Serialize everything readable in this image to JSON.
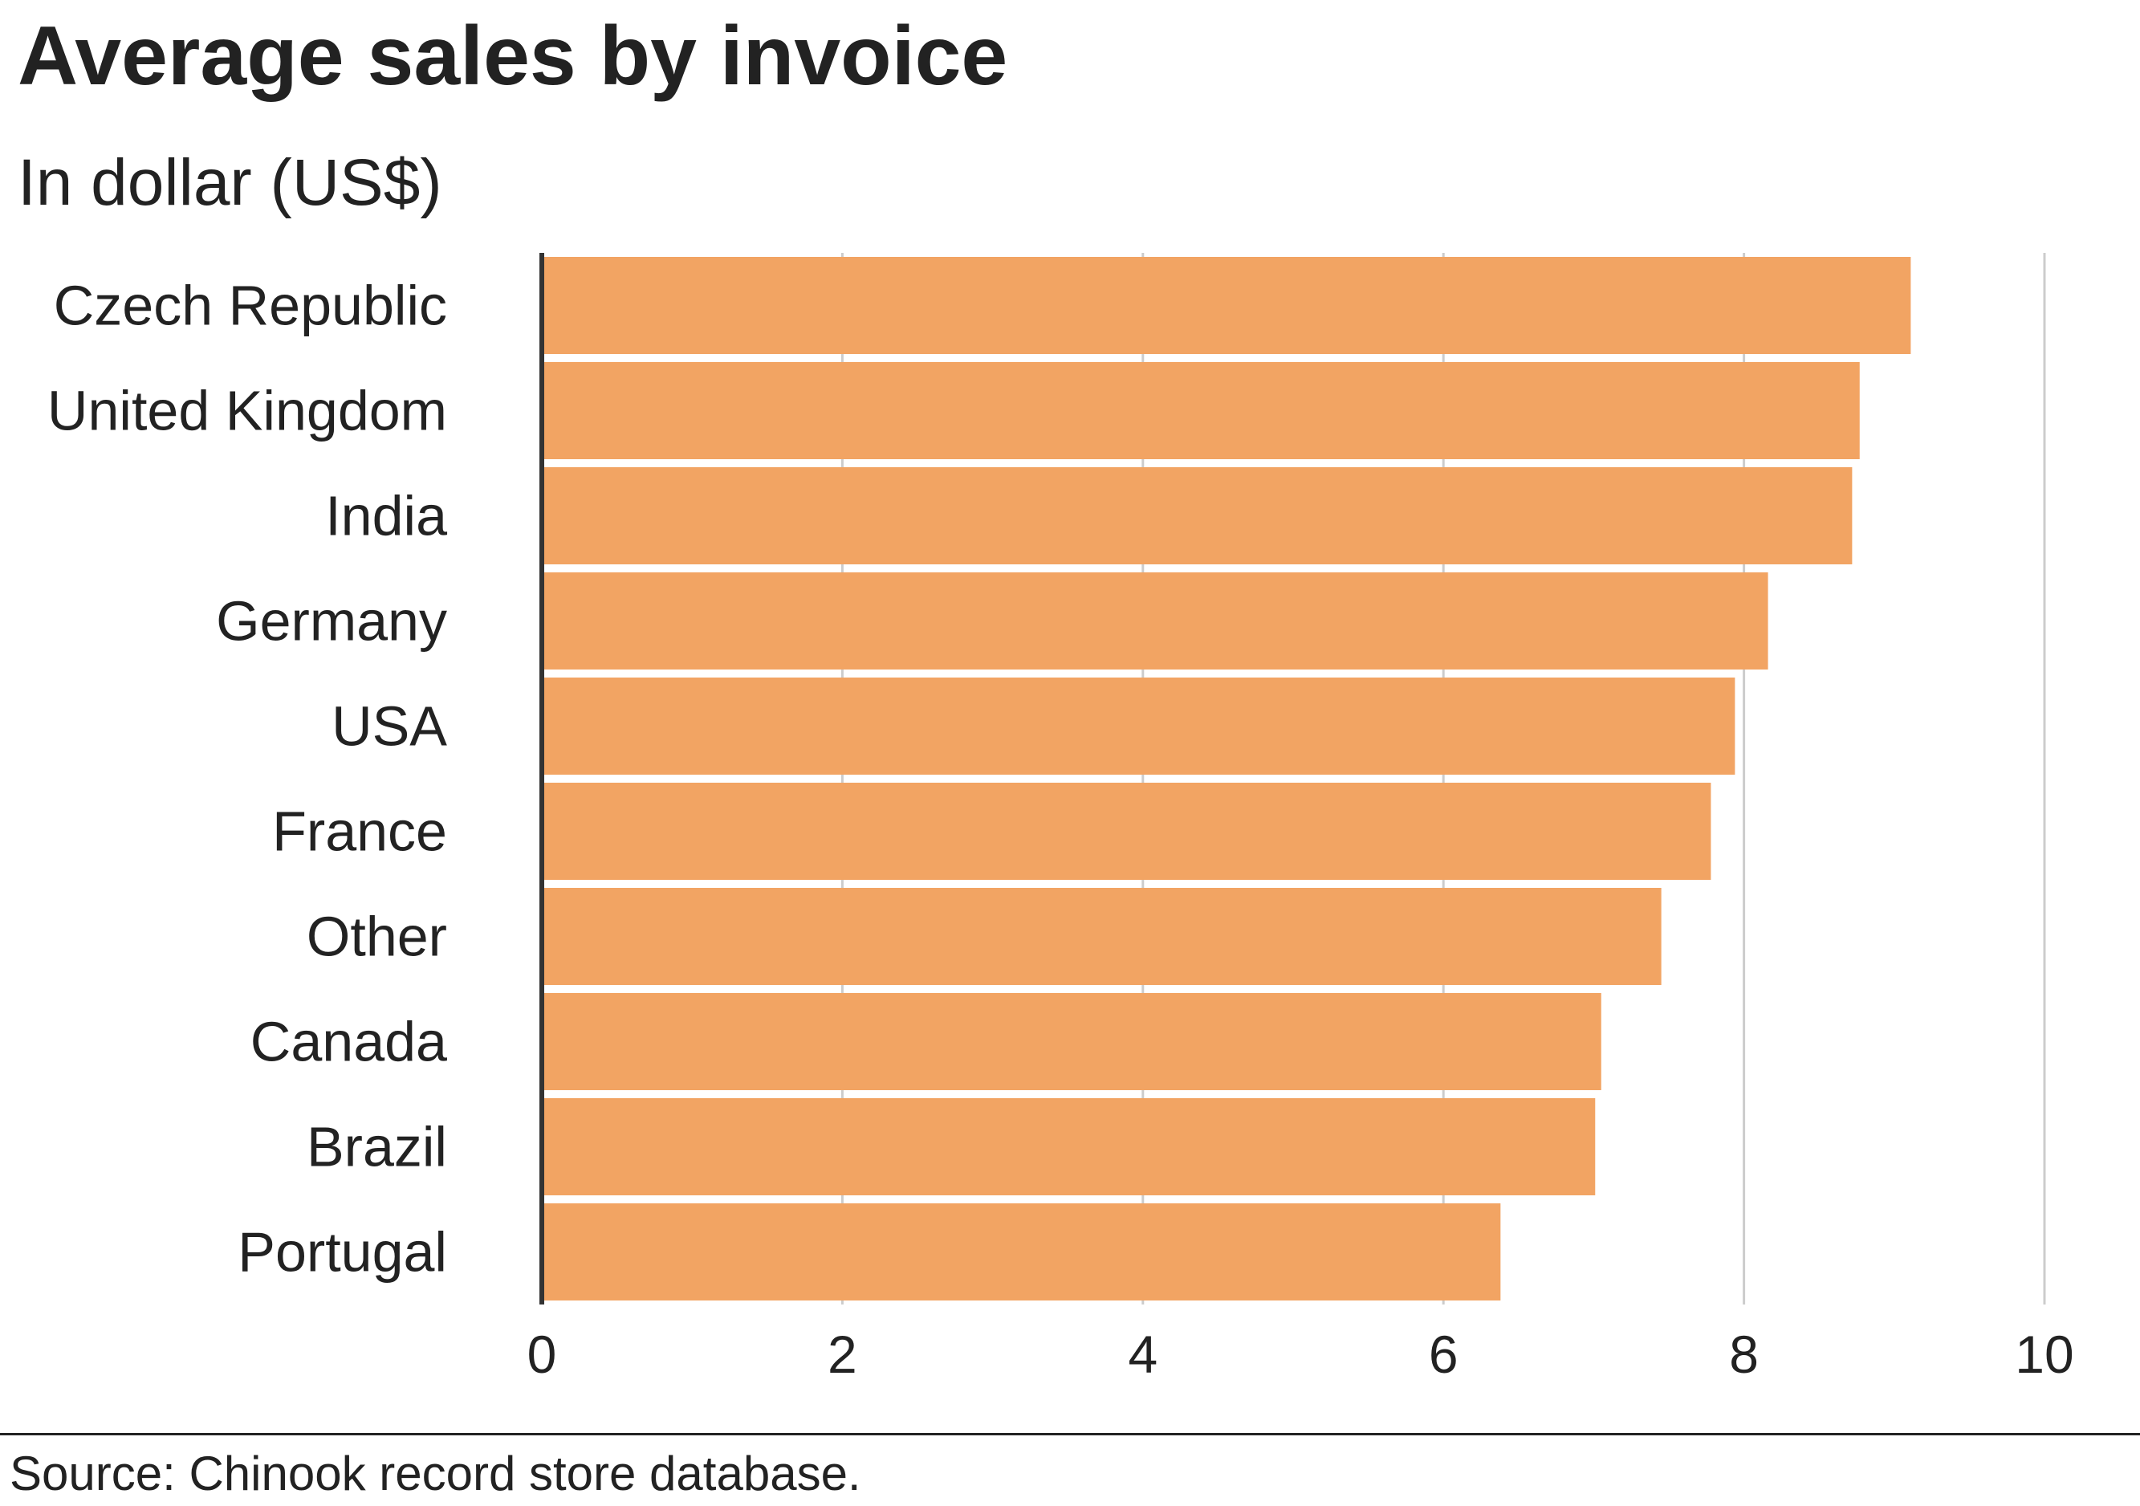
{
  "header": {
    "title": "Average sales by invoice",
    "subtitle": "In dollar (US$)"
  },
  "footer": {
    "source": "Source: Chinook record store database."
  },
  "colors": {
    "bar": "#f2a463",
    "grid": "#cccccc",
    "axis": "#333333",
    "text": "#222222"
  },
  "chart_data": {
    "type": "bar",
    "orientation": "horizontal",
    "title": "Average sales by invoice",
    "subtitle": "In dollar (US$)",
    "categories": [
      "Czech Republic",
      "United Kingdom",
      "India",
      "Germany",
      "USA",
      "France",
      "Other",
      "Canada",
      "Brazil",
      "Portugal"
    ],
    "values": [
      9.11,
      8.77,
      8.72,
      8.16,
      7.94,
      7.78,
      7.45,
      7.05,
      7.01,
      6.38
    ],
    "x_ticks": [
      0,
      2,
      4,
      6,
      8,
      10
    ],
    "xlim": [
      0,
      10
    ],
    "xlabel": "",
    "ylabel": "",
    "grid": "vertical",
    "legend": "none"
  }
}
